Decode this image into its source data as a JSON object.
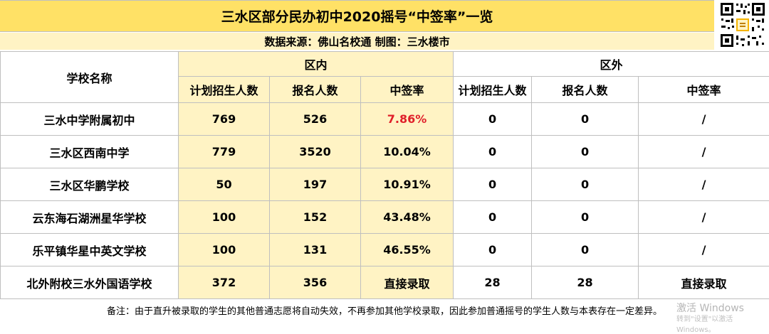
{
  "title": "三水区部分民办初中2020摇号“中签率”一览",
  "source": "数据来源：佛山名校通  制图：三水楼市",
  "qr_icon": "qr-code-icon",
  "header": {
    "school_name": "学校名称",
    "inside": "区内",
    "outside": "区外",
    "plan": "计划招生人数",
    "applicants": "报名人数",
    "rate": "中签率"
  },
  "rows": [
    {
      "name": "三水中学附属初中",
      "in_plan": "769",
      "in_apply": "526",
      "in_rate": "7.86%",
      "out_plan": "0",
      "out_apply": "0",
      "out_rate": "/"
    },
    {
      "name": "三水区西南中学",
      "in_plan": "779",
      "in_apply": "3520",
      "in_rate": "10.04%",
      "out_plan": "0",
      "out_apply": "0",
      "out_rate": "/"
    },
    {
      "name": "三水区华鹏学校",
      "in_plan": "50",
      "in_apply": "197",
      "in_rate": "10.91%",
      "out_plan": "0",
      "out_apply": "0",
      "out_rate": "/"
    },
    {
      "name": "云东海石湖洲星华学校",
      "in_plan": "100",
      "in_apply": "152",
      "in_rate": "43.48%",
      "out_plan": "0",
      "out_apply": "0",
      "out_rate": "/"
    },
    {
      "name": "乐平镇华星中英文学校",
      "in_plan": "100",
      "in_apply": "131",
      "in_rate": "46.55%",
      "out_plan": "0",
      "out_apply": "0",
      "out_rate": "/"
    },
    {
      "name": "北外附校三水外国语学校",
      "in_plan": "372",
      "in_apply": "356",
      "in_rate": "直接录取",
      "out_plan": "28",
      "out_apply": "28",
      "out_rate": "直接录取"
    }
  ],
  "note": "备注：由于直升被录取的学生的其他普通志愿将自动失效，不再参加其他学校录取，因此参加普通摇号的学生人数与本表存在一定差异。",
  "watermark": {
    "line1": "激活 Windows",
    "line2": "转到\"设置\"以激活 Windows。"
  },
  "colors": {
    "title_bg": "#ffe166",
    "highlight_bg": "#fff3c4",
    "red_text": "#e0202a",
    "border": "#bfbfbf"
  }
}
